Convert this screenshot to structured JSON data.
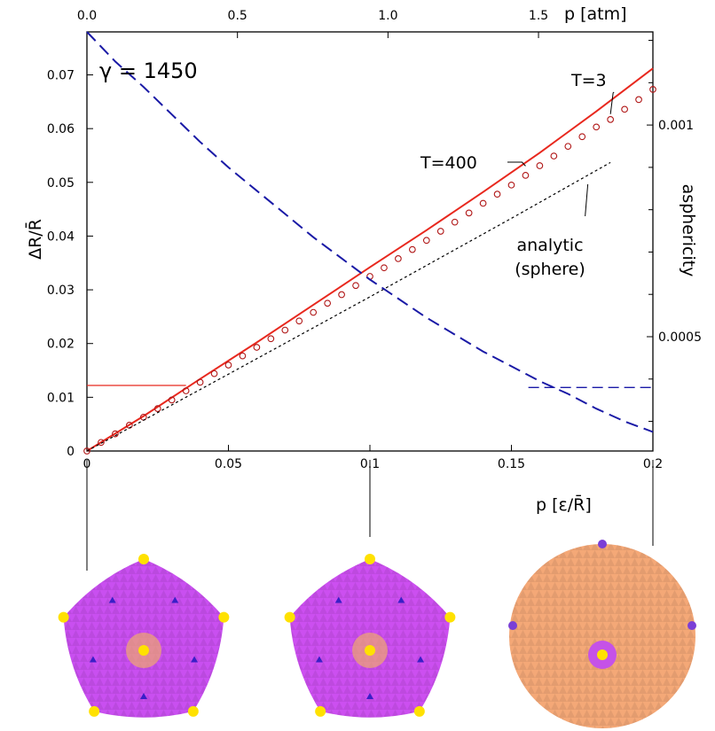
{
  "chart_data": {
    "type": "line",
    "x_bottom": {
      "label": "p [ε/R̄]",
      "range": [
        0,
        0.2
      ],
      "ticks": [
        "0",
        "0.05",
        "0.1",
        "0.15",
        "0.2"
      ],
      "tick_values": [
        0,
        0.05,
        0.1,
        0.15,
        0.2
      ]
    },
    "x_top": {
      "label": "p [atm]",
      "range": [
        0,
        1.88
      ],
      "ticks": [
        "0.0",
        "0.5",
        "1.0",
        "1.5"
      ],
      "tick_values": [
        0,
        0.5,
        1.0,
        1.5
      ]
    },
    "y_left": {
      "label": "ΔR/R̄",
      "range": [
        0,
        0.078
      ],
      "ticks": [
        "0",
        "0.01",
        "0.02",
        "0.03",
        "0.04",
        "0.05",
        "0.06",
        "0.07"
      ],
      "tick_values": [
        0,
        0.01,
        0.02,
        0.03,
        0.04,
        0.05,
        0.06,
        0.07
      ]
    },
    "y_right": {
      "label": "asphericity",
      "range": [
        0.00023,
        0.00122
      ],
      "ticks": [
        "0.0005",
        "0.001"
      ],
      "tick_values": [
        0.0005,
        0.001
      ]
    },
    "annotations": {
      "gamma": "γ = 1450",
      "t3": "T=3",
      "t400": "T=400",
      "analytic_line1": "analytic",
      "analytic_line2": "(sphere)"
    },
    "series": [
      {
        "key": "t400",
        "axis": "left",
        "style": "solid",
        "color": "#e8281e",
        "x": [
          0,
          0.02,
          0.04,
          0.06,
          0.08,
          0.1,
          0.12,
          0.14,
          0.16,
          0.18,
          0.2
        ],
        "y": [
          0,
          0.0065,
          0.0134,
          0.0202,
          0.0272,
          0.0342,
          0.0411,
          0.0482,
          0.0555,
          0.0632,
          0.0712
        ]
      },
      {
        "key": "t3",
        "axis": "left",
        "style": "circles",
        "color": "#b01616",
        "x": [
          0,
          0.005,
          0.01,
          0.015,
          0.02,
          0.025,
          0.03,
          0.035,
          0.04,
          0.045,
          0.05,
          0.055,
          0.06,
          0.065,
          0.07,
          0.075,
          0.08,
          0.085,
          0.09,
          0.095,
          0.1,
          0.105,
          0.11,
          0.115,
          0.12,
          0.125,
          0.13,
          0.135,
          0.14,
          0.145,
          0.15,
          0.155,
          0.16,
          0.165,
          0.17,
          0.175,
          0.18,
          0.185,
          0.19,
          0.195,
          0.2
        ],
        "y": [
          0,
          0.0016,
          0.0032,
          0.0048,
          0.0063,
          0.0079,
          0.0095,
          0.0112,
          0.0128,
          0.0144,
          0.016,
          0.0177,
          0.0193,
          0.0209,
          0.0225,
          0.0242,
          0.0258,
          0.0275,
          0.0291,
          0.0308,
          0.0325,
          0.0341,
          0.0358,
          0.0375,
          0.0392,
          0.0409,
          0.0426,
          0.0443,
          0.0461,
          0.0478,
          0.0495,
          0.0513,
          0.0531,
          0.0549,
          0.0567,
          0.0585,
          0.0603,
          0.0617,
          0.0636,
          0.0654,
          0.0673
        ]
      },
      {
        "key": "analytic",
        "axis": "left",
        "style": "dotted",
        "color": "#000000",
        "x": [
          0,
          0.05,
          0.1,
          0.15,
          0.185
        ],
        "y": [
          0,
          0.0143,
          0.0287,
          0.0433,
          0.0537
        ]
      },
      {
        "key": "asphericity",
        "axis": "right",
        "style": "dashed",
        "color": "#1a1aa6",
        "x": [
          0,
          0.01,
          0.02,
          0.03,
          0.04,
          0.05,
          0.06,
          0.07,
          0.08,
          0.09,
          0.1,
          0.11,
          0.12,
          0.13,
          0.14,
          0.15,
          0.16,
          0.17,
          0.18,
          0.19,
          0.2
        ],
        "y": [
          0.00122,
          0.00115,
          0.00109,
          0.001025,
          0.00096,
          0.0009,
          0.000845,
          0.00079,
          0.000735,
          0.000685,
          0.000635,
          0.00059,
          0.000545,
          0.000505,
          0.000465,
          0.00043,
          0.000395,
          0.000365,
          0.00033,
          0.0003,
          0.000275
        ]
      }
    ],
    "guide_lines": [
      {
        "key": "hline_red",
        "color": "#e8281e",
        "style": "solid",
        "x": [
          0,
          0.035
        ],
        "y": [
          0.0122,
          0.0122
        ],
        "axis": "left"
      },
      {
        "key": "hline_blue",
        "color": "#1a1aa6",
        "style": "dashed",
        "x": [
          0.156,
          0.2
        ],
        "y": [
          0.00038,
          0.00038
        ],
        "axis": "right"
      }
    ],
    "insets": [
      {
        "key": "shape-low-pressure",
        "x": 0,
        "base": "#c94ff0",
        "spots": "#ffe100"
      },
      {
        "key": "shape-mid-pressure",
        "x": 0.1,
        "base": "#cc4ff0",
        "spots": "#ffe100"
      },
      {
        "key": "shape-high-pressure",
        "x": 0.2,
        "base": "#f4a877",
        "spots": "#ffe100"
      }
    ],
    "grid": false,
    "legend": "none"
  }
}
